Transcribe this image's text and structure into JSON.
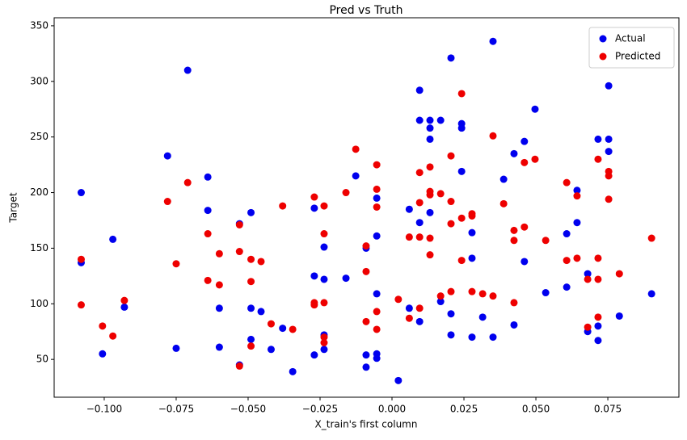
{
  "chart_data": {
    "type": "scatter",
    "title": "Pred vs Truth",
    "x_label": "X_train's first column",
    "y_label": "Target",
    "xlim": [
      -0.1174,
      0.0997
    ],
    "ylim": [
      16,
      357.2
    ],
    "xticks": [
      {
        "value": -0.1,
        "label": "−0.100"
      },
      {
        "value": -0.075,
        "label": "−0.075"
      },
      {
        "value": -0.05,
        "label": "−0.050"
      },
      {
        "value": -0.025,
        "label": "−0.025"
      },
      {
        "value": 0,
        "label": "0.000"
      },
      {
        "value": 0.025,
        "label": "0.025"
      },
      {
        "value": 0.05,
        "label": "0.050"
      },
      {
        "value": 0.075,
        "label": "0.075"
      }
    ],
    "yticks": [
      50,
      100,
      150,
      200,
      250,
      300,
      350
    ],
    "legend": "upper right",
    "grid": false,
    "series": [
      {
        "name": "Actual",
        "color": "#0000ee",
        "x": [
          -0.108,
          -0.108,
          -0.1006,
          -0.097,
          -0.093,
          -0.078,
          -0.075,
          -0.071,
          -0.064,
          -0.064,
          -0.06,
          -0.06,
          -0.053,
          -0.053,
          -0.049,
          -0.049,
          -0.049,
          -0.0455,
          -0.042,
          -0.038,
          -0.0345,
          -0.027,
          -0.027,
          -0.027,
          -0.0236,
          -0.0236,
          -0.0236,
          -0.0236,
          -0.016,
          -0.0126,
          -0.009,
          -0.009,
          -0.009,
          -0.0053,
          -0.0053,
          -0.0053,
          -0.0053,
          -0.0053,
          0.0022,
          0.006,
          0.006,
          0.0096,
          0.0096,
          0.0096,
          0.0096,
          0.0132,
          0.0132,
          0.0132,
          0.0132,
          0.0169,
          0.0169,
          0.0205,
          0.0205,
          0.0205,
          0.0242,
          0.0242,
          0.0242,
          0.0278,
          0.0278,
          0.0278,
          0.0315,
          0.0351,
          0.0351,
          0.0388,
          0.0424,
          0.0424,
          0.046,
          0.046,
          0.0497,
          0.0534,
          0.0607,
          0.0607,
          0.0643,
          0.0643,
          0.068,
          0.068,
          0.0716,
          0.0716,
          0.0716,
          0.0753,
          0.0753,
          0.0753,
          0.079,
          0.0902
        ],
        "values": [
          200,
          137,
          55,
          158,
          97,
          233,
          60,
          310,
          214,
          184,
          96,
          61,
          172,
          45,
          182,
          96,
          68,
          93,
          59,
          78,
          39,
          186,
          125,
          54,
          151,
          122,
          72,
          59,
          123,
          215,
          150,
          54,
          43,
          195,
          161,
          109,
          55,
          51,
          31,
          185,
          96,
          292,
          265,
          173,
          84,
          265,
          258,
          248,
          182,
          265,
          102,
          321,
          91,
          72,
          262,
          258,
          219,
          164,
          141,
          70,
          88,
          336,
          70,
          212,
          235,
          81,
          246,
          138,
          275,
          110,
          163,
          115,
          202,
          173,
          127,
          75,
          248,
          80,
          67,
          296,
          248,
          237,
          89,
          109
        ]
      },
      {
        "name": "Predicted",
        "color": "#ee0000",
        "x": [
          -0.108,
          -0.108,
          -0.1006,
          -0.097,
          -0.093,
          -0.078,
          -0.075,
          -0.071,
          -0.064,
          -0.064,
          -0.06,
          -0.06,
          -0.053,
          -0.053,
          -0.053,
          -0.049,
          -0.049,
          -0.049,
          -0.0455,
          -0.042,
          -0.038,
          -0.0345,
          -0.027,
          -0.027,
          -0.027,
          -0.0236,
          -0.0236,
          -0.0236,
          -0.0236,
          -0.0236,
          -0.016,
          -0.0126,
          -0.009,
          -0.009,
          -0.009,
          -0.0053,
          -0.0053,
          -0.0053,
          -0.0053,
          -0.0053,
          0.0022,
          0.006,
          0.006,
          0.0096,
          0.0096,
          0.0096,
          0.0096,
          0.0132,
          0.0132,
          0.0132,
          0.0132,
          0.0132,
          0.0169,
          0.0169,
          0.0205,
          0.0205,
          0.0205,
          0.0205,
          0.0242,
          0.0242,
          0.0242,
          0.0278,
          0.0278,
          0.0278,
          0.0315,
          0.0351,
          0.0351,
          0.0388,
          0.0424,
          0.0424,
          0.0424,
          0.046,
          0.046,
          0.0497,
          0.0534,
          0.0607,
          0.0607,
          0.0643,
          0.0643,
          0.068,
          0.068,
          0.0716,
          0.0716,
          0.0716,
          0.0716,
          0.0753,
          0.0753,
          0.0753,
          0.079,
          0.0902
        ],
        "values": [
          140,
          99,
          80,
          71,
          103,
          192,
          136,
          209,
          163,
          121,
          145,
          117,
          171,
          147,
          44,
          140,
          120,
          62,
          138,
          82,
          188,
          77,
          196,
          101,
          99,
          188,
          163,
          101,
          70,
          65,
          200,
          239,
          152,
          129,
          84,
          225,
          203,
          187,
          93,
          77,
          104,
          160,
          87,
          218,
          191,
          160,
          96,
          223,
          201,
          198,
          159,
          144,
          199,
          107,
          233,
          192,
          172,
          111,
          289,
          177,
          139,
          181,
          179,
          111,
          109,
          251,
          107,
          190,
          166,
          157,
          101,
          227,
          169,
          230,
          157,
          209,
          139,
          197,
          141,
          122,
          79,
          230,
          141,
          122,
          88,
          219,
          215,
          194,
          127,
          159
        ]
      }
    ]
  }
}
